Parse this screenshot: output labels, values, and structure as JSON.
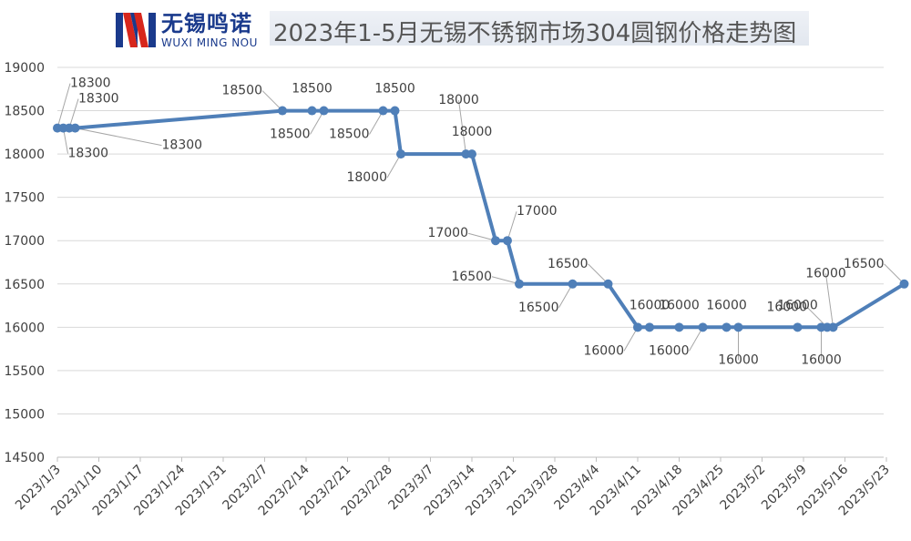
{
  "header": {
    "logo_cn": "无锡鸣诺",
    "logo_en": "WUXI MING NOU",
    "title": "2023年1-5月无锡不锈钢市场304圆钢价格走势图"
  },
  "colors": {
    "line": "#4f7fb8",
    "logo_blue": "#1a3a8c",
    "logo_red": "#d7261c",
    "grid": "#d9d9d9",
    "label_text": "#404040",
    "leader": "#a6a6a6"
  },
  "chart_data": {
    "type": "line",
    "title": "2023年1-5月无锡不锈钢市场304圆钢价格走势图",
    "xlabel": "",
    "ylabel": "",
    "ylim": [
      14500,
      19000
    ],
    "yticks": [
      14500,
      15000,
      15500,
      16000,
      16500,
      17000,
      17500,
      18000,
      18500,
      19000
    ],
    "xticks": [
      "2023/1/3",
      "2023/1/10",
      "2023/1/17",
      "2023/1/24",
      "2023/1/31",
      "2023/2/7",
      "2023/2/14",
      "2023/2/21",
      "2023/2/28",
      "2023/3/7",
      "2023/3/14",
      "2023/3/21",
      "2023/3/28",
      "2023/4/4",
      "2023/4/11",
      "2023/4/18",
      "2023/4/25",
      "2023/5/2",
      "2023/5/9",
      "2023/5/16",
      "2023/5/23"
    ],
    "grid": true,
    "legend": "none",
    "series": [
      {
        "points": [
          {
            "x": "2023/1/3",
            "y": 18300
          },
          {
            "x": "2023/1/4",
            "y": 18300
          },
          {
            "x": "2023/1/5",
            "y": 18300
          },
          {
            "x": "2023/1/6",
            "y": 18300
          },
          {
            "x": "2023/2/10",
            "y": 18500
          },
          {
            "x": "2023/2/15",
            "y": 18500
          },
          {
            "x": "2023/2/17",
            "y": 18500
          },
          {
            "x": "2023/2/27",
            "y": 18500
          },
          {
            "x": "2023/3/1",
            "y": 18500
          },
          {
            "x": "2023/3/2",
            "y": 18000
          },
          {
            "x": "2023/3/13",
            "y": 18000
          },
          {
            "x": "2023/3/14",
            "y": 18000
          },
          {
            "x": "2023/3/18",
            "y": 17000
          },
          {
            "x": "2023/3/20",
            "y": 17000
          },
          {
            "x": "2023/3/22",
            "y": 16500
          },
          {
            "x": "2023/3/31",
            "y": 16500
          },
          {
            "x": "2023/4/6",
            "y": 16500
          },
          {
            "x": "2023/4/11",
            "y": 16000
          },
          {
            "x": "2023/4/13",
            "y": 16000
          },
          {
            "x": "2023/4/18",
            "y": 16000
          },
          {
            "x": "2023/4/22",
            "y": 16000
          },
          {
            "x": "2023/4/26",
            "y": 16000
          },
          {
            "x": "2023/4/28",
            "y": 16000
          },
          {
            "x": "2023/5/8",
            "y": 16000
          },
          {
            "x": "2023/5/12",
            "y": 16000
          },
          {
            "x": "2023/5/13",
            "y": 16000
          },
          {
            "x": "2023/5/14",
            "y": 16000
          },
          {
            "x": "2023/5/26",
            "y": 16500
          }
        ]
      }
    ]
  },
  "data_labels": [
    {
      "text": "18300",
      "idx": 0,
      "place": "above-right-far"
    },
    {
      "text": "18300",
      "idx": 1,
      "place": "below-right"
    },
    {
      "text": "18300",
      "idx": 2,
      "place": "above-right"
    },
    {
      "text": "18300",
      "idx": 3,
      "place": "below-right-far"
    },
    {
      "text": "18500",
      "idx": 4,
      "place": "above-left"
    },
    {
      "text": "18500",
      "idx": 5,
      "place": "above"
    },
    {
      "text": "18500",
      "idx": 6,
      "place": "below-left"
    },
    {
      "text": "18500",
      "idx": 7,
      "place": "below-left"
    },
    {
      "text": "18500",
      "idx": 8,
      "place": "above"
    },
    {
      "text": "18000",
      "idx": 9,
      "place": "below-left"
    },
    {
      "text": "18000",
      "idx": 10,
      "place": "above-high"
    },
    {
      "text": "18000",
      "idx": 11,
      "place": "above"
    },
    {
      "text": "17000",
      "idx": 12,
      "place": "left"
    },
    {
      "text": "17000",
      "idx": 13,
      "place": "above-right"
    },
    {
      "text": "16500",
      "idx": 14,
      "place": "left"
    },
    {
      "text": "16500",
      "idx": 15,
      "place": "below-left"
    },
    {
      "text": "16500",
      "idx": 16,
      "place": "above-left"
    },
    {
      "text": "16000",
      "idx": 17,
      "place": "below-left"
    },
    {
      "text": "16000",
      "idx": 18,
      "place": "above"
    },
    {
      "text": "16000",
      "idx": 19,
      "place": "above"
    },
    {
      "text": "16000",
      "idx": 20,
      "place": "below-left"
    },
    {
      "text": "16000",
      "idx": 21,
      "place": "above"
    },
    {
      "text": "16000",
      "idx": 22,
      "place": "below"
    },
    {
      "text": "16000",
      "idx": 23,
      "place": "above"
    },
    {
      "text": "16000",
      "idx": 24,
      "place": "below"
    },
    {
      "text": "16000",
      "idx": 25,
      "place": "above-left"
    },
    {
      "text": "16000",
      "idx": 26,
      "place": "above-high"
    },
    {
      "text": "16500",
      "idx": 27,
      "place": "above-left"
    }
  ]
}
